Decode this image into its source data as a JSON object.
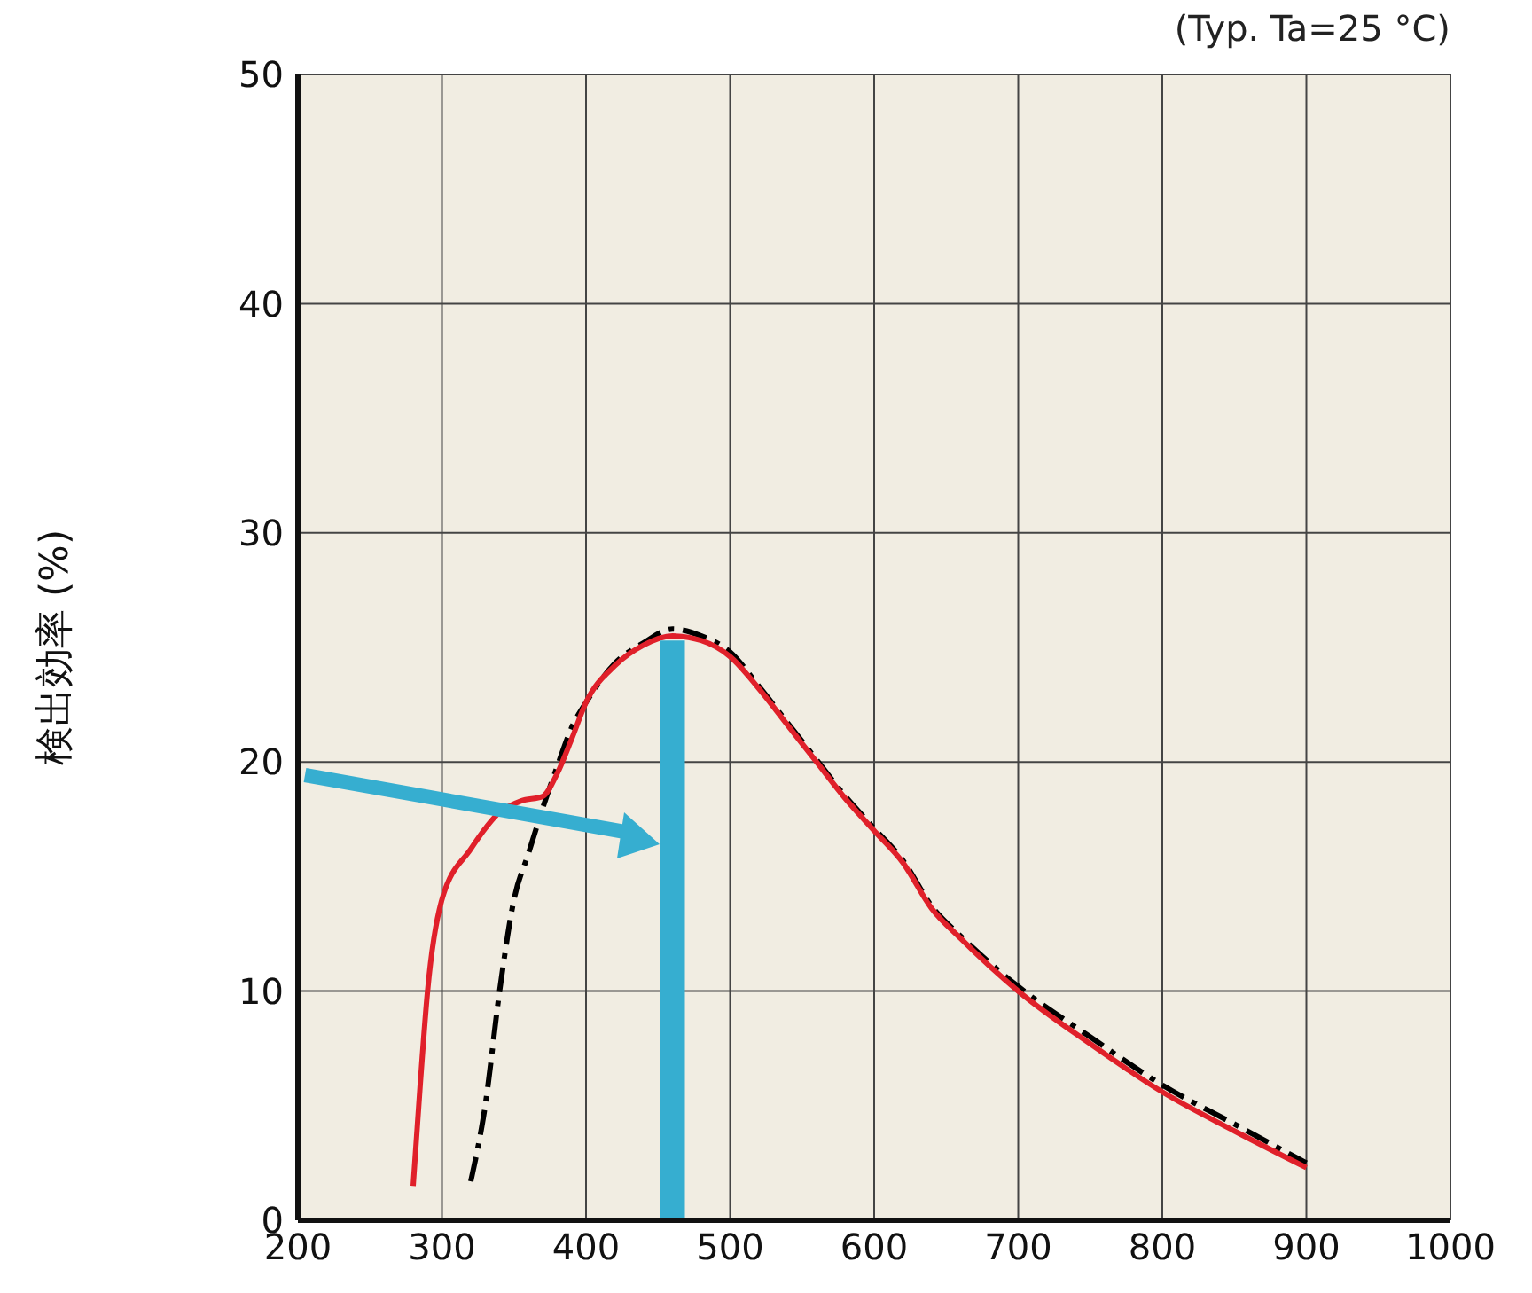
{
  "chart_data": {
    "type": "line",
    "subtitle": "(Typ. Ta=25 °C)",
    "ylabel": "検出効率 (%)",
    "xlim": [
      200,
      1000
    ],
    "xticks": [
      200,
      300,
      400,
      500,
      600,
      700,
      800,
      900,
      1000
    ],
    "ylim": [
      0,
      50
    ],
    "yticks": [
      0,
      10,
      20,
      30,
      40,
      50
    ],
    "grid": true,
    "legend": false,
    "marker": "none",
    "series": [
      {
        "color": "#000000",
        "line_style": "dashed",
        "x": [
          320,
          330,
          340,
          350,
          360,
          370,
          380,
          390,
          400,
          420,
          440,
          460,
          480,
          500,
          520,
          540,
          560,
          580,
          600,
          620,
          640,
          660,
          700,
          750,
          800,
          850,
          900
        ],
        "values": [
          1.7,
          5,
          10,
          14,
          16,
          18,
          19.8,
          21.5,
          22.6,
          24.3,
          25.2,
          25.8,
          25.5,
          24.8,
          23.3,
          21.7,
          20.1,
          18.5,
          17.1,
          15.7,
          13.7,
          12.4,
          10.2,
          8,
          5.9,
          4.2,
          2.5
        ]
      },
      {
        "color": "#e0202a",
        "line_style": "solid",
        "x": [
          280,
          285,
          290,
          300,
          320,
          340,
          355,
          370,
          380,
          390,
          400,
          420,
          440,
          460,
          480,
          500,
          520,
          540,
          560,
          580,
          600,
          620,
          640,
          660,
          700,
          750,
          800,
          850,
          900
        ],
        "values": [
          1.5,
          6,
          10,
          14,
          16.2,
          17.8,
          18.3,
          18.5,
          19.5,
          21,
          22.6,
          24.2,
          25.1,
          25.5,
          25.3,
          24.6,
          23.2,
          21.6,
          20,
          18.4,
          17,
          15.6,
          13.6,
          12.3,
          10,
          7.7,
          5.6,
          3.9,
          2.3
        ]
      },
      {
        "color": "#36aed0",
        "line_style": "solid",
        "x": [
          460,
          460
        ],
        "values": [
          0,
          25.3
        ]
      }
    ]
  }
}
